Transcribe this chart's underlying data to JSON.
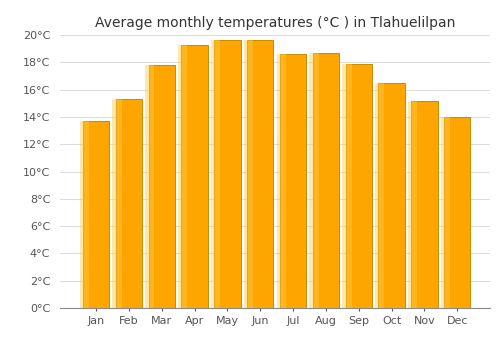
{
  "title": "Average monthly temperatures (°C ) in Tlahuelilpan",
  "months": [
    "Jan",
    "Feb",
    "Mar",
    "Apr",
    "May",
    "Jun",
    "Jul",
    "Aug",
    "Sep",
    "Oct",
    "Nov",
    "Dec"
  ],
  "values": [
    13.7,
    15.3,
    17.8,
    19.3,
    19.6,
    19.6,
    18.6,
    18.7,
    17.9,
    16.5,
    15.2,
    14.0
  ],
  "bar_color": "#FFA500",
  "bar_edge_color": "#CC8800",
  "background_color": "#FFFFFF",
  "plot_bg_color": "#FFFFFF",
  "grid_color": "#DDDDDD",
  "ylim": [
    0,
    20
  ],
  "ytick_step": 2,
  "title_fontsize": 10,
  "tick_fontsize": 8,
  "bar_width": 0.8
}
